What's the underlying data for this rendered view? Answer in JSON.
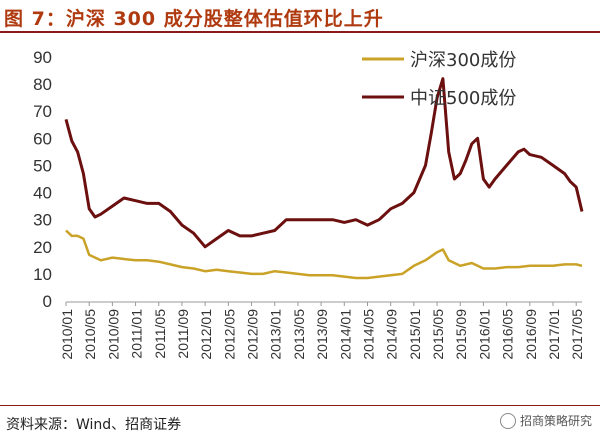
{
  "header": {
    "title": "图 7：沪深 300 成分股整体估值环比上升"
  },
  "footer": {
    "source": "资料来源：Wind、招商证券",
    "watermark": "招商策略研究"
  },
  "chart_data": {
    "type": "line",
    "title": "",
    "xlabel": "",
    "ylabel": "",
    "ylim": [
      0,
      90
    ],
    "yticks": [
      "0",
      "10",
      "20",
      "30",
      "40",
      "50",
      "60",
      "70",
      "80",
      "90"
    ],
    "grid": false,
    "legend_position": "top-right",
    "x_tick_labels": [
      "2010/01",
      "2010/05",
      "2010/09",
      "2011/01",
      "2011/05",
      "2011/09",
      "2012/01",
      "2012/05",
      "2012/09",
      "2013/01",
      "2013/05",
      "2013/09",
      "2014/01",
      "2014/05",
      "2014/09",
      "2015/01",
      "2015/05",
      "2015/09",
      "2016/01",
      "2016/05",
      "2016/09",
      "2017/01",
      "2017/05"
    ],
    "series": [
      {
        "name": "沪深300成份",
        "color": "#c9a227",
        "points": [
          [
            "2010/01",
            26
          ],
          [
            "2010/02",
            24
          ],
          [
            "2010/03",
            24
          ],
          [
            "2010/04",
            23
          ],
          [
            "2010/05",
            17
          ],
          [
            "2010/07",
            15
          ],
          [
            "2010/09",
            16
          ],
          [
            "2010/11",
            15.5
          ],
          [
            "2011/01",
            15
          ],
          [
            "2011/03",
            15
          ],
          [
            "2011/05",
            14.5
          ],
          [
            "2011/07",
            13.5
          ],
          [
            "2011/09",
            12.5
          ],
          [
            "2011/11",
            12
          ],
          [
            "2012/01",
            11
          ],
          [
            "2012/03",
            11.5
          ],
          [
            "2012/05",
            11
          ],
          [
            "2012/07",
            10.5
          ],
          [
            "2012/09",
            10
          ],
          [
            "2012/11",
            10
          ],
          [
            "2013/01",
            11
          ],
          [
            "2013/03",
            10.5
          ],
          [
            "2013/05",
            10
          ],
          [
            "2013/07",
            9.5
          ],
          [
            "2013/09",
            9.5
          ],
          [
            "2013/11",
            9.5
          ],
          [
            "2014/01",
            9
          ],
          [
            "2014/03",
            8.5
          ],
          [
            "2014/05",
            8.5
          ],
          [
            "2014/07",
            9
          ],
          [
            "2014/09",
            9.5
          ],
          [
            "2014/11",
            10
          ],
          [
            "2015/01",
            13
          ],
          [
            "2015/03",
            15
          ],
          [
            "2015/05",
            18
          ],
          [
            "2015/06",
            19
          ],
          [
            "2015/07",
            15
          ],
          [
            "2015/09",
            13
          ],
          [
            "2015/11",
            14
          ],
          [
            "2016/01",
            12
          ],
          [
            "2016/03",
            12
          ],
          [
            "2016/05",
            12.5
          ],
          [
            "2016/07",
            12.5
          ],
          [
            "2016/09",
            13
          ],
          [
            "2016/11",
            13
          ],
          [
            "2017/01",
            13
          ],
          [
            "2017/03",
            13.5
          ],
          [
            "2017/05",
            13.5
          ],
          [
            "2017/06",
            13
          ]
        ]
      },
      {
        "name": "中证500成份",
        "color": "#6b0f0f",
        "points": [
          [
            "2010/01",
            67
          ],
          [
            "2010/02",
            59
          ],
          [
            "2010/03",
            55
          ],
          [
            "2010/04",
            47
          ],
          [
            "2010/05",
            34
          ],
          [
            "2010/06",
            31
          ],
          [
            "2010/07",
            32
          ],
          [
            "2010/09",
            35
          ],
          [
            "2010/11",
            38
          ],
          [
            "2011/01",
            37
          ],
          [
            "2011/03",
            36
          ],
          [
            "2011/05",
            36
          ],
          [
            "2011/07",
            33
          ],
          [
            "2011/09",
            28
          ],
          [
            "2011/11",
            25
          ],
          [
            "2012/01",
            20
          ],
          [
            "2012/03",
            23
          ],
          [
            "2012/05",
            26
          ],
          [
            "2012/07",
            24
          ],
          [
            "2012/09",
            24
          ],
          [
            "2012/11",
            25
          ],
          [
            "2013/01",
            26
          ],
          [
            "2013/03",
            30
          ],
          [
            "2013/05",
            30
          ],
          [
            "2013/07",
            30
          ],
          [
            "2013/09",
            30
          ],
          [
            "2013/11",
            30
          ],
          [
            "2014/01",
            29
          ],
          [
            "2014/03",
            30
          ],
          [
            "2014/05",
            28
          ],
          [
            "2014/07",
            30
          ],
          [
            "2014/09",
            34
          ],
          [
            "2014/11",
            36
          ],
          [
            "2015/01",
            40
          ],
          [
            "2015/03",
            50
          ],
          [
            "2015/04",
            62
          ],
          [
            "2015/05",
            75
          ],
          [
            "2015/06",
            82
          ],
          [
            "2015/07",
            55
          ],
          [
            "2015/08",
            45
          ],
          [
            "2015/09",
            47
          ],
          [
            "2015/10",
            52
          ],
          [
            "2015/11",
            58
          ],
          [
            "2015/12",
            60
          ],
          [
            "2016/01",
            45
          ],
          [
            "2016/02",
            42
          ],
          [
            "2016/03",
            45
          ],
          [
            "2016/05",
            50
          ],
          [
            "2016/07",
            55
          ],
          [
            "2016/08",
            56
          ],
          [
            "2016/09",
            54
          ],
          [
            "2016/11",
            53
          ],
          [
            "2017/01",
            50
          ],
          [
            "2017/03",
            47
          ],
          [
            "2017/04",
            44
          ],
          [
            "2017/05",
            42
          ],
          [
            "2017/06",
            33
          ]
        ]
      }
    ]
  }
}
